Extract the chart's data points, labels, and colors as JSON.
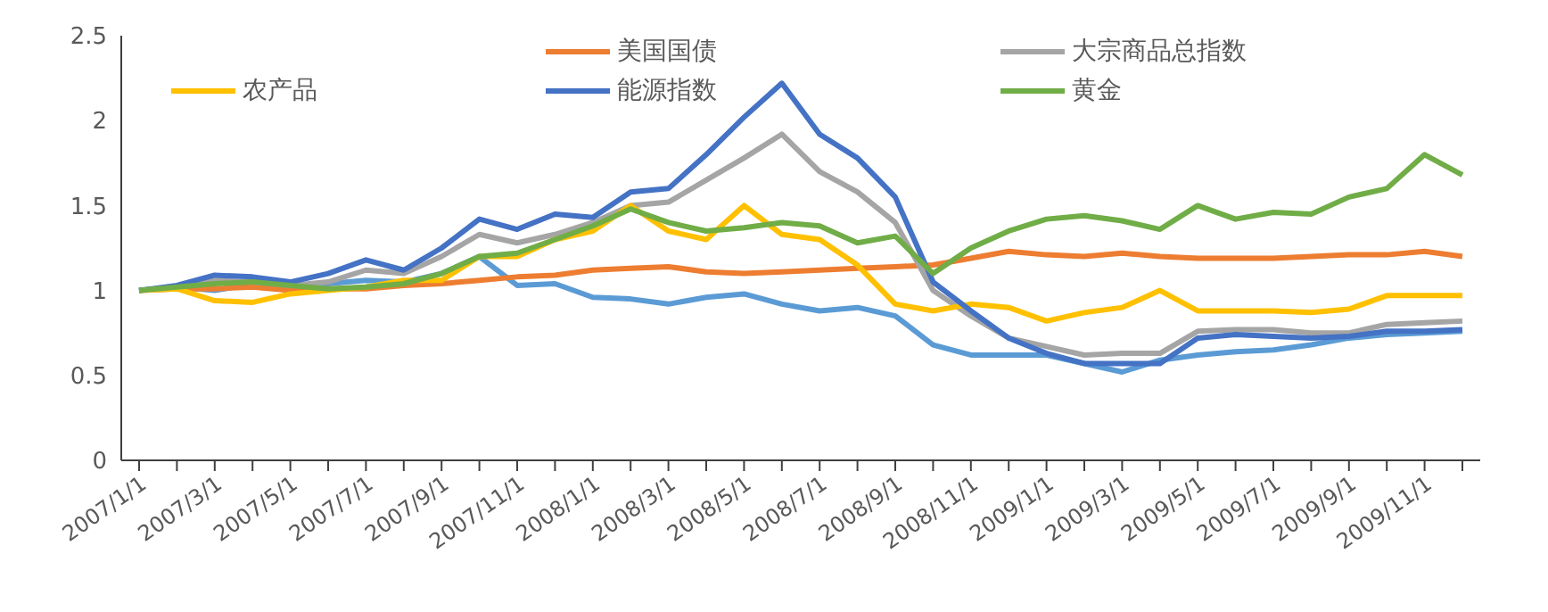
{
  "chart_data": {
    "type": "line",
    "categories": [
      "2007/1/1",
      null,
      "2007/3/1",
      null,
      "2007/5/1",
      null,
      "2007/7/1",
      null,
      "2007/9/1",
      null,
      "2007/11/1",
      null,
      "2008/1/1",
      null,
      "2008/3/1",
      null,
      "2008/5/1",
      null,
      "2008/7/1",
      null,
      "2008/9/1",
      null,
      "2008/11/1",
      null,
      "2009/1/1",
      null,
      "2009/3/1",
      null,
      "2009/5/1",
      null,
      "2009/7/1",
      null,
      "2009/9/1",
      null,
      "2009/11/1",
      null
    ],
    "ylim": [
      0,
      2.5
    ],
    "yticks": [
      0,
      0.5,
      1,
      1.5,
      2,
      2.5
    ],
    "grid": false,
    "legend": "top",
    "marker": "none",
    "line_style": "solid",
    "series": [
      {
        "color": "#5b9bd5",
        "values": [
          1.0,
          1.02,
          1.0,
          1.04,
          1.02,
          1.04,
          1.06,
          1.05,
          1.1,
          1.2,
          1.03,
          1.04,
          0.96,
          0.95,
          0.92,
          0.96,
          0.98,
          0.92,
          0.88,
          0.9,
          0.85,
          0.68,
          0.62,
          0.62,
          0.62,
          0.57,
          0.52,
          0.59,
          0.62,
          0.64,
          0.65,
          0.68,
          0.72,
          0.74,
          0.75,
          0.76
        ]
      },
      {
        "name": "美国国债",
        "color": "#ed7d31",
        "values": [
          1.0,
          1.01,
          1.01,
          1.02,
          1.0,
          1.01,
          1.01,
          1.03,
          1.04,
          1.06,
          1.08,
          1.09,
          1.12,
          1.13,
          1.14,
          1.11,
          1.1,
          1.11,
          1.12,
          1.13,
          1.14,
          1.15,
          1.19,
          1.23,
          1.21,
          1.2,
          1.22,
          1.2,
          1.19,
          1.19,
          1.19,
          1.2,
          1.21,
          1.21,
          1.23,
          1.2
        ]
      },
      {
        "name": "大宗商品总指数",
        "color": "#a5a5a5",
        "values": [
          1.0,
          1.02,
          1.06,
          1.05,
          1.03,
          1.05,
          1.12,
          1.1,
          1.2,
          1.33,
          1.28,
          1.33,
          1.4,
          1.5,
          1.52,
          1.65,
          1.78,
          1.92,
          1.7,
          1.58,
          1.4,
          1.0,
          0.85,
          0.72,
          0.67,
          0.62,
          0.63,
          0.63,
          0.76,
          0.77,
          0.77,
          0.75,
          0.75,
          0.8,
          0.81,
          0.82
        ]
      },
      {
        "name": "农产品",
        "color": "#ffc000",
        "values": [
          1.0,
          1.01,
          0.94,
          0.93,
          0.98,
          1.0,
          1.02,
          1.06,
          1.06,
          1.2,
          1.2,
          1.3,
          1.35,
          1.5,
          1.35,
          1.3,
          1.5,
          1.33,
          1.3,
          1.15,
          0.92,
          0.88,
          0.92,
          0.9,
          0.82,
          0.87,
          0.9,
          1.0,
          0.88,
          0.88,
          0.88,
          0.87,
          0.89,
          0.97,
          0.97,
          0.97
        ]
      },
      {
        "name": "能源指数",
        "color": "#4472c4",
        "values": [
          1.0,
          1.03,
          1.09,
          1.08,
          1.05,
          1.1,
          1.18,
          1.12,
          1.25,
          1.42,
          1.36,
          1.45,
          1.43,
          1.58,
          1.6,
          1.8,
          2.02,
          2.22,
          1.92,
          1.78,
          1.55,
          1.05,
          0.88,
          0.72,
          0.63,
          0.57,
          0.57,
          0.57,
          0.72,
          0.74,
          0.73,
          0.72,
          0.73,
          0.76,
          0.76,
          0.77
        ]
      },
      {
        "name": "黄金",
        "color": "#70ad47",
        "values": [
          1.0,
          1.02,
          1.04,
          1.05,
          1.03,
          1.01,
          1.02,
          1.04,
          1.1,
          1.2,
          1.22,
          1.3,
          1.38,
          1.48,
          1.4,
          1.35,
          1.37,
          1.4,
          1.38,
          1.28,
          1.32,
          1.1,
          1.25,
          1.35,
          1.42,
          1.44,
          1.41,
          1.36,
          1.5,
          1.42,
          1.46,
          1.45,
          1.55,
          1.6,
          1.8,
          1.68
        ]
      }
    ]
  }
}
